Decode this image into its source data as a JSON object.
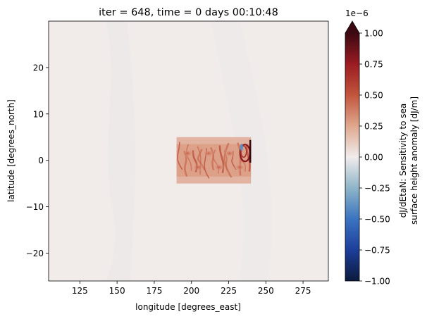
{
  "chart_data": {
    "type": "heatmap",
    "title": "iter = 648, time = 0 days 00:10:48",
    "xlabel": "longitude [degrees_east]",
    "ylabel": "latitude [degrees_north]",
    "xlim": [
      104,
      292
    ],
    "ylim": [
      -26,
      30
    ],
    "xticks": [
      125,
      150,
      175,
      200,
      225,
      250,
      275
    ],
    "yticks": [
      -20,
      -10,
      0,
      10,
      20
    ],
    "background_value_color": "#f2ebe9",
    "anomaly_region": {
      "lon": [
        190,
        240
      ],
      "lat": [
        -5,
        5
      ],
      "description_values": {
        "typical": 0.35,
        "max": 0.8,
        "min": -0.6
      }
    },
    "colorbar": {
      "label_line1": "dJ/dEtaN: Sensitivity to sea",
      "label_line2": "surface height anomaly [dJ/m]",
      "multiplier": "1e−6",
      "min": -1.0,
      "max": 1.0,
      "extend": "max",
      "ticks": [
        -1.0,
        -0.75,
        -0.5,
        -0.25,
        0.0,
        0.25,
        0.5,
        0.75,
        1.0
      ],
      "tick_labels": [
        "−1.00",
        "−0.75",
        "−0.50",
        "−0.25",
        "0.00",
        "0.25",
        "0.50",
        "0.75",
        "1.00"
      ],
      "colormap": "balance",
      "colors": [
        "#0b1a3c",
        "#1d3e9a",
        "#3a74c0",
        "#8fb5c9",
        "#f1ecec",
        "#dfa88e",
        "#c2553c",
        "#9b1c22",
        "#3c0912"
      ]
    }
  }
}
